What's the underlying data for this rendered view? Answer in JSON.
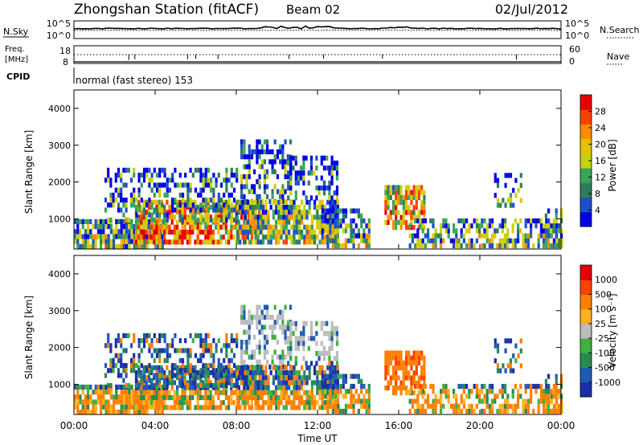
{
  "header": {
    "station": "Zhongshan Station (fitACF)",
    "beam": "Beam 02",
    "date": "02/Jul/2012"
  },
  "noise_panel": {
    "left_label": "N.Sky",
    "right_label": "N.Search",
    "tick_top": "10^5",
    "tick_bottom": "10^0"
  },
  "freq_panel": {
    "left_label_line1": "Freq.",
    "left_label_line2": "[MHz]",
    "right_label": "Nave",
    "left_ticks": [
      "18",
      "8"
    ],
    "right_ticks": [
      "60",
      "0"
    ]
  },
  "cpid": {
    "label": "CPID",
    "text": "normal (fast stereo) 153"
  },
  "chart_data": [
    {
      "type": "heatmap",
      "name": "power",
      "ylabel": "Slant Range [km]",
      "xlabel": "",
      "yticks": [
        "4000",
        "3000",
        "2000",
        "1000"
      ],
      "ylim": [
        180,
        4500
      ],
      "colorbar_label": "Power [dB]",
      "colorbar_ticks": [
        "28",
        "24",
        "20",
        "16",
        "12",
        "8",
        "4"
      ],
      "colorscale": [
        "#0000e6",
        "#1e50c8",
        "#2e7d5a",
        "#3aa35a",
        "#c8d20a",
        "#e6c300",
        "#ff8c00",
        "#ff4000",
        "#e60000"
      ]
    },
    {
      "type": "heatmap",
      "name": "velocity",
      "ylabel": "Slant Range [km]",
      "xlabel": "Time UT",
      "yticks": [
        "4000",
        "3000",
        "2000",
        "1000"
      ],
      "ylim": [
        180,
        4500
      ],
      "xticks": [
        "00:00",
        "04:00",
        "08:00",
        "12:00",
        "16:00",
        "20:00",
        "00:00"
      ],
      "colorbar_label": "Velocity [m s⁻¹]",
      "colorbar_ticks": [
        "1000",
        "500",
        "100",
        "25",
        "-25",
        "-100",
        "-500",
        "-1000"
      ],
      "colorscale": [
        "#1a2ea6",
        "#1e5ab4",
        "#2a8a50",
        "#40b040",
        "#bcbcbc",
        "#ffb020",
        "#ff8000",
        "#ff4000",
        "#e60000"
      ]
    }
  ]
}
